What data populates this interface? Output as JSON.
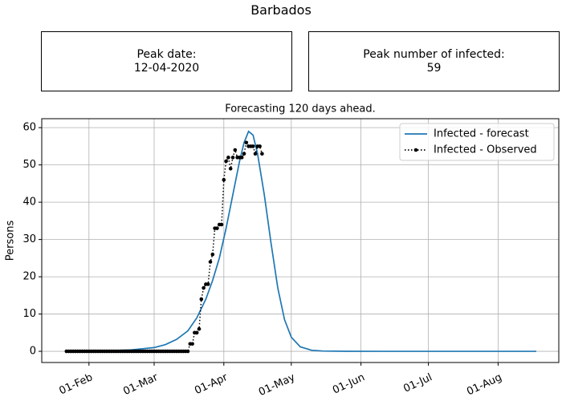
{
  "header": {
    "title": "Barbados"
  },
  "cards": [
    {
      "label": "Peak date:",
      "value": "12-04-2020"
    },
    {
      "label": "Peak number of infected:",
      "value": 59
    }
  ],
  "chart_data": {
    "type": "line",
    "title": "Forecasting 120 days ahead.",
    "ylabel": "Persons",
    "xlim": [
      "2020-01-11",
      "2020-08-28"
    ],
    "ylim": [
      -3,
      62.4
    ],
    "xticks": [
      {
        "value": "2020-02-01",
        "label": "01-Feb"
      },
      {
        "value": "2020-03-01",
        "label": "01-Mar"
      },
      {
        "value": "2020-04-01",
        "label": "01-Apr"
      },
      {
        "value": "2020-05-01",
        "label": "01-May"
      },
      {
        "value": "2020-06-01",
        "label": "01-Jun"
      },
      {
        "value": "2020-07-01",
        "label": "01-Jul"
      },
      {
        "value": "2020-08-01",
        "label": "01-Aug"
      }
    ],
    "yticks": [
      0,
      10,
      20,
      30,
      40,
      50,
      60
    ],
    "grid": true,
    "legend": "upper right",
    "series": [
      {
        "name": "Infected - forecast",
        "color": "#1f77b4",
        "linestyle": "solid",
        "x": [
          "2020-01-22",
          "2020-02-01",
          "2020-02-10",
          "2020-02-20",
          "2020-03-01",
          "2020-03-06",
          "2020-03-11",
          "2020-03-16",
          "2020-03-20",
          "2020-03-24",
          "2020-03-27",
          "2020-03-30",
          "2020-04-02",
          "2020-04-05",
          "2020-04-08",
          "2020-04-10",
          "2020-04-12",
          "2020-04-14",
          "2020-04-16",
          "2020-04-19",
          "2020-04-22",
          "2020-04-25",
          "2020-04-28",
          "2020-05-01",
          "2020-05-05",
          "2020-05-10",
          "2020-05-15",
          "2020-05-25",
          "2020-06-10",
          "2020-07-01",
          "2020-08-01",
          "2020-08-18"
        ],
        "values": [
          0,
          0.05,
          0.15,
          0.4,
          1.0,
          1.8,
          3.2,
          5.5,
          9,
          14,
          19,
          25,
          33,
          42,
          51,
          56,
          59,
          58,
          53,
          42,
          29,
          17,
          8.5,
          3.8,
          1.2,
          0.3,
          0.08,
          0.01,
          0,
          0,
          0,
          0
        ]
      },
      {
        "name": "Infected - Observed",
        "color": "#000000",
        "linestyle": "dotted",
        "marker": "o",
        "x": [
          "2020-01-22",
          "2020-01-23",
          "2020-01-24",
          "2020-01-25",
          "2020-01-26",
          "2020-01-27",
          "2020-01-28",
          "2020-01-29",
          "2020-01-30",
          "2020-01-31",
          "2020-02-01",
          "2020-02-02",
          "2020-02-03",
          "2020-02-04",
          "2020-02-05",
          "2020-02-06",
          "2020-02-07",
          "2020-02-08",
          "2020-02-09",
          "2020-02-10",
          "2020-02-11",
          "2020-02-12",
          "2020-02-13",
          "2020-02-14",
          "2020-02-15",
          "2020-02-16",
          "2020-02-17",
          "2020-02-18",
          "2020-02-19",
          "2020-02-20",
          "2020-02-21",
          "2020-02-22",
          "2020-02-23",
          "2020-02-24",
          "2020-02-25",
          "2020-02-26",
          "2020-02-27",
          "2020-02-28",
          "2020-02-29",
          "2020-03-01",
          "2020-03-02",
          "2020-03-03",
          "2020-03-04",
          "2020-03-05",
          "2020-03-06",
          "2020-03-07",
          "2020-03-08",
          "2020-03-09",
          "2020-03-10",
          "2020-03-11",
          "2020-03-12",
          "2020-03-13",
          "2020-03-14",
          "2020-03-15",
          "2020-03-16",
          "2020-03-17",
          "2020-03-18",
          "2020-03-19",
          "2020-03-20",
          "2020-03-21",
          "2020-03-22",
          "2020-03-23",
          "2020-03-24",
          "2020-03-25",
          "2020-03-26",
          "2020-03-27",
          "2020-03-28",
          "2020-03-29",
          "2020-03-30",
          "2020-03-31",
          "2020-04-01",
          "2020-04-02",
          "2020-04-03",
          "2020-04-04",
          "2020-04-05",
          "2020-04-06",
          "2020-04-07",
          "2020-04-08",
          "2020-04-09",
          "2020-04-10",
          "2020-04-11",
          "2020-04-12",
          "2020-04-13",
          "2020-04-14",
          "2020-04-15",
          "2020-04-16",
          "2020-04-17",
          "2020-04-18"
        ],
        "values": [
          0,
          0,
          0,
          0,
          0,
          0,
          0,
          0,
          0,
          0,
          0,
          0,
          0,
          0,
          0,
          0,
          0,
          0,
          0,
          0,
          0,
          0,
          0,
          0,
          0,
          0,
          0,
          0,
          0,
          0,
          0,
          0,
          0,
          0,
          0,
          0,
          0,
          0,
          0,
          0,
          0,
          0,
          0,
          0,
          0,
          0,
          0,
          0,
          0,
          0,
          0,
          0,
          0,
          0,
          0,
          2,
          2,
          5,
          5,
          6,
          14,
          17,
          18,
          18,
          24,
          26,
          33,
          33,
          34,
          34,
          46,
          51,
          52,
          49,
          52,
          54,
          52,
          52,
          52,
          53,
          56,
          55,
          55,
          55,
          53,
          55,
          55,
          53
        ]
      }
    ]
  }
}
